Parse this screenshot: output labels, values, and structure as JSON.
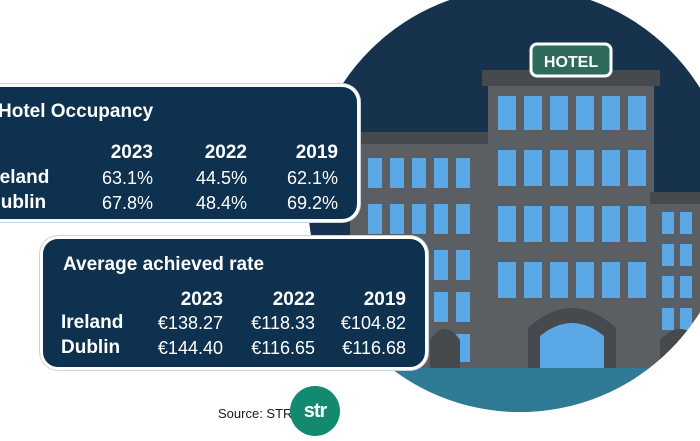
{
  "illustration": {
    "sign": "HOTEL"
  },
  "occupancy": {
    "title": "Hotel Occupancy",
    "years": [
      "2023",
      "2022",
      "2019"
    ],
    "rows": [
      {
        "label": "Ireland",
        "values": [
          "63.1%",
          "44.5%",
          "62.1%"
        ]
      },
      {
        "label": "Dublin",
        "values": [
          "67.8%",
          "48.4%",
          "69.2%"
        ]
      }
    ]
  },
  "rate": {
    "title": "Average achieved rate",
    "years": [
      "2023",
      "2022",
      "2019"
    ],
    "rows": [
      {
        "label": "Ireland",
        "values": [
          "€138.27",
          "€118.33",
          "€104.82"
        ]
      },
      {
        "label": "Dublin",
        "values": [
          "€144.40",
          "€116.65",
          "€116.68"
        ]
      }
    ]
  },
  "source": {
    "text": "Source: STR",
    "logo": "str"
  },
  "colors": {
    "panel": "#0e3150",
    "window": "#5aa9e6",
    "building": "#5b5e63",
    "logo": "#138a6f"
  }
}
